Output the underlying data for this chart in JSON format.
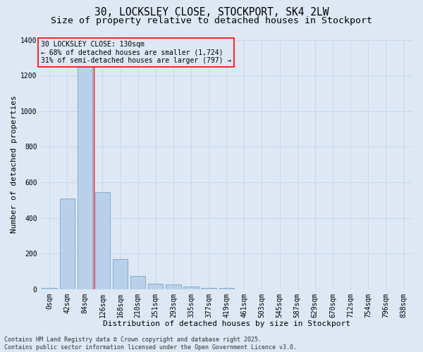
{
  "title_line1": "30, LOCKSLEY CLOSE, STOCKPORT, SK4 2LW",
  "title_line2": "Size of property relative to detached houses in Stockport",
  "xlabel": "Distribution of detached houses by size in Stockport",
  "ylabel": "Number of detached properties",
  "categories": [
    "0sqm",
    "42sqm",
    "84sqm",
    "126sqm",
    "168sqm",
    "210sqm",
    "251sqm",
    "293sqm",
    "335sqm",
    "377sqm",
    "419sqm",
    "461sqm",
    "503sqm",
    "545sqm",
    "587sqm",
    "629sqm",
    "670sqm",
    "712sqm",
    "754sqm",
    "796sqm",
    "838sqm"
  ],
  "bar_values": [
    5,
    510,
    1260,
    545,
    170,
    75,
    30,
    25,
    15,
    5,
    5,
    0,
    0,
    0,
    0,
    0,
    0,
    0,
    0,
    0,
    0
  ],
  "bar_color": "#b8d0ea",
  "bar_edge_color": "#6699cc",
  "grid_color": "#c8d8ec",
  "bg_color": "#dde8f4",
  "annotation_text_line1": "30 LOCKSLEY CLOSE: 130sqm",
  "annotation_text_line2": "← 68% of detached houses are smaller (1,724)",
  "annotation_text_line3": "31% of semi-detached houses are larger (797) →",
  "red_line_bin": 3,
  "ylim": [
    0,
    1400
  ],
  "yticks": [
    0,
    200,
    400,
    600,
    800,
    1000,
    1200,
    1400
  ],
  "footer_line1": "Contains HM Land Registry data © Crown copyright and database right 2025.",
  "footer_line2": "Contains public sector information licensed under the Open Government Licence v3.0.",
  "title_fontsize": 10.5,
  "subtitle_fontsize": 9.5,
  "axis_label_fontsize": 8,
  "tick_fontsize": 7,
  "annotation_fontsize": 7,
  "footer_fontsize": 6
}
